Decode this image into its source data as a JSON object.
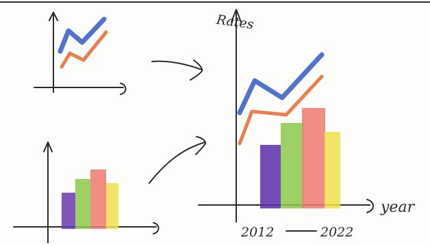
{
  "combined_chart": {
    "y_label": "Rates",
    "x_label": "year",
    "x_start": "2012",
    "x_end": "2022"
  }
}
